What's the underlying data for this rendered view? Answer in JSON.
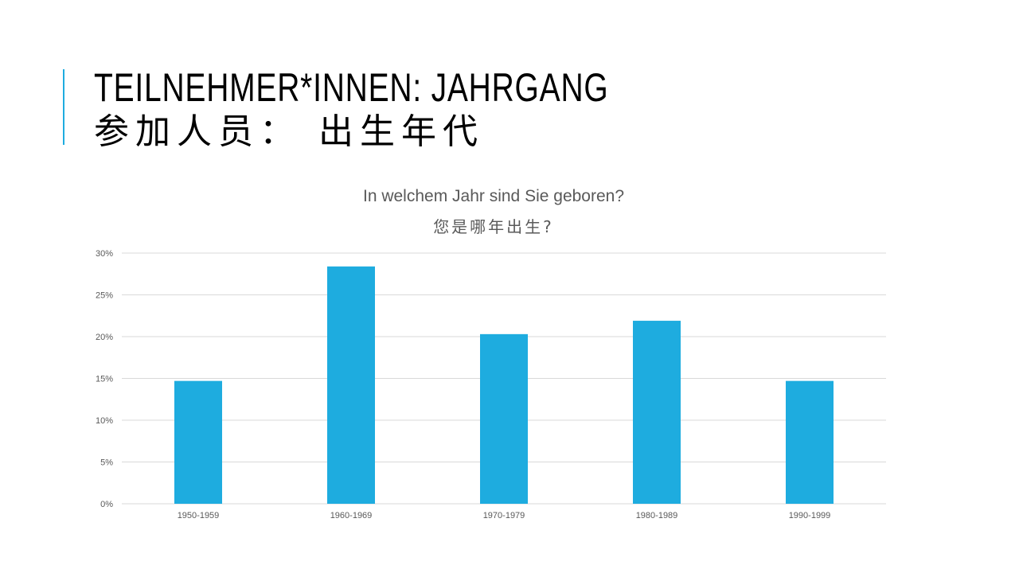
{
  "slide": {
    "title_line1": "TEILNEHMER*INNEN: JAHRGANG",
    "title_line2": "参加人员： 出生年代"
  },
  "colors": {
    "accent": "#1eacdf",
    "bar": "#1eacdf",
    "grid": "#d9d9d9"
  },
  "chart_data": {
    "type": "bar",
    "title": "In welchem Jahr sind Sie geboren?",
    "subtitle": "您是哪年出生?",
    "categories": [
      "1950-1959",
      "1960-1969",
      "1970-1979",
      "1980-1989",
      "1990-1999"
    ],
    "values": [
      14.7,
      28.4,
      20.3,
      21.9,
      14.7
    ],
    "yticks": [
      "0%",
      "5%",
      "10%",
      "15%",
      "20%",
      "25%",
      "30%"
    ],
    "ylim": [
      0,
      30
    ],
    "grid": true,
    "legend": "none"
  }
}
